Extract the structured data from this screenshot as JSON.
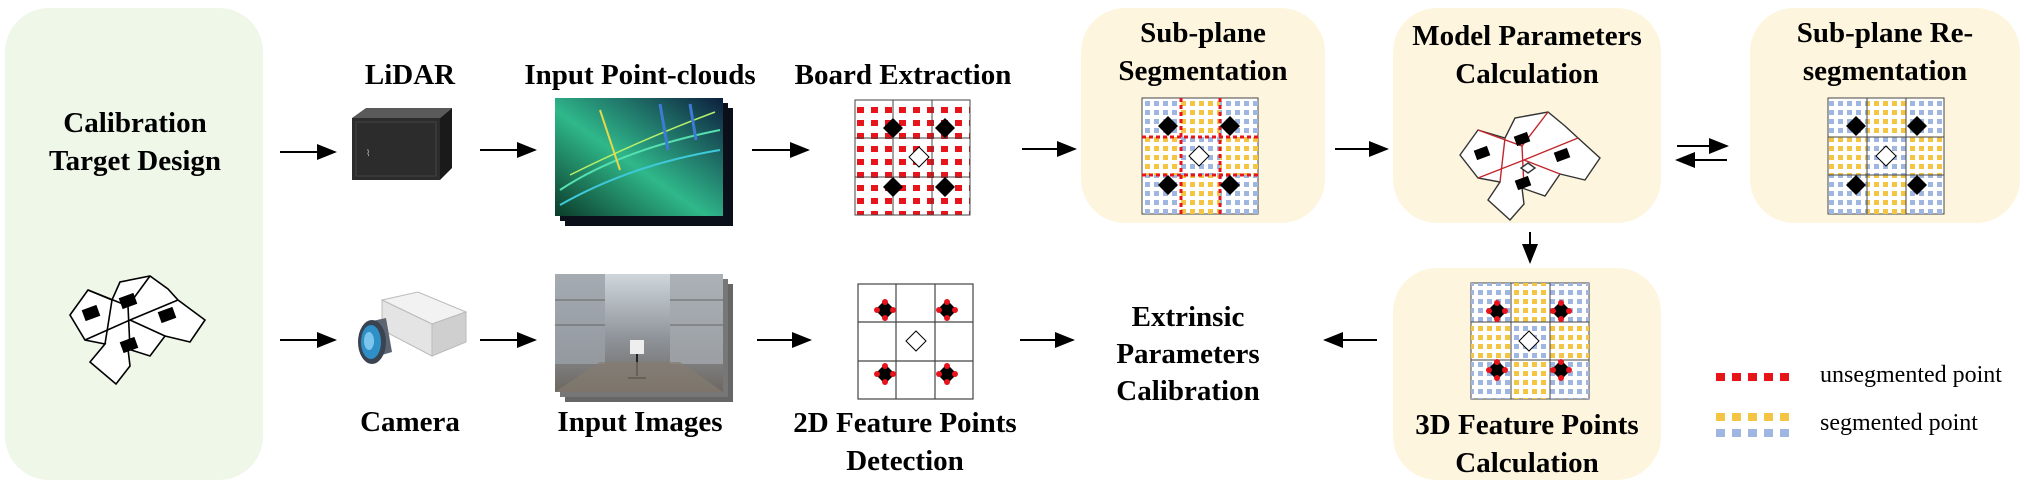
{
  "colors": {
    "green_panel": "#EEF7E8",
    "yellow_panel": "#FDF5DE",
    "unsegmented": "#E8141B",
    "segmented_yellow": "#F4C542",
    "segmented_blue": "#9FB7E0",
    "board_black": "#000000"
  },
  "nodes": {
    "calibration_target": "Calibration Target Design",
    "lidar": "LiDAR",
    "camera": "Camera",
    "input_pointclouds": "Input Point-clouds",
    "input_images": "Input Images",
    "board_extraction": "Board Extraction",
    "feature_2d": "2D Feature Points Detection",
    "subplane_seg": "Sub-plane Segmentation",
    "extrinsic": "Extrinsic Parameters Calibration",
    "model_params": "Model Parameters Calculation",
    "feature_3d": "3D Feature Points Calculation",
    "resegmentation": "Sub-plane Re-segmentation"
  },
  "legend": {
    "unsegmented": "unsegmented point",
    "segmented": "segmented point"
  },
  "icons": [
    "lidar-device-icon",
    "camera-device-icon",
    "point-cloud-image",
    "atrium-photo-image"
  ]
}
